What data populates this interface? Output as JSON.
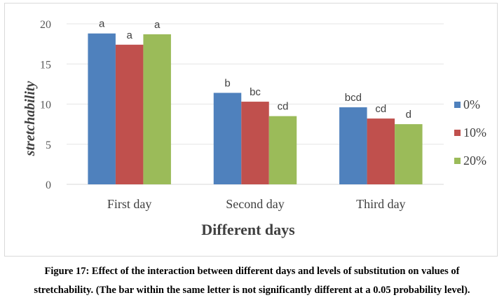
{
  "chart_data": {
    "type": "bar",
    "categories": [
      "First day",
      "Second day",
      "Third day"
    ],
    "series": [
      {
        "name": "0%",
        "color": "#4f81bd",
        "values": [
          18.8,
          11.4,
          9.6
        ],
        "labels": [
          "a",
          "b",
          "bcd"
        ]
      },
      {
        "name": "10%",
        "color": "#c0504d",
        "values": [
          17.4,
          10.3,
          8.2
        ],
        "labels": [
          "a",
          "bc",
          "cd"
        ]
      },
      {
        "name": "20%",
        "color": "#9bbb59",
        "values": [
          18.7,
          8.5,
          7.5
        ],
        "labels": [
          "a",
          "cd",
          "d"
        ]
      }
    ],
    "xlabel": "Different days",
    "ylabel": "stretchability",
    "ylim": [
      0,
      20
    ],
    "yticks": [
      0,
      5,
      10,
      15,
      20
    ],
    "grid": true,
    "legend": "right"
  },
  "caption": {
    "line1": "Figure 17: Effect of the interaction between different days and levels of substitution on values of",
    "line2": "stretchability. (The bar within the same letter is not significantly different at a 0.05 probability level)."
  }
}
